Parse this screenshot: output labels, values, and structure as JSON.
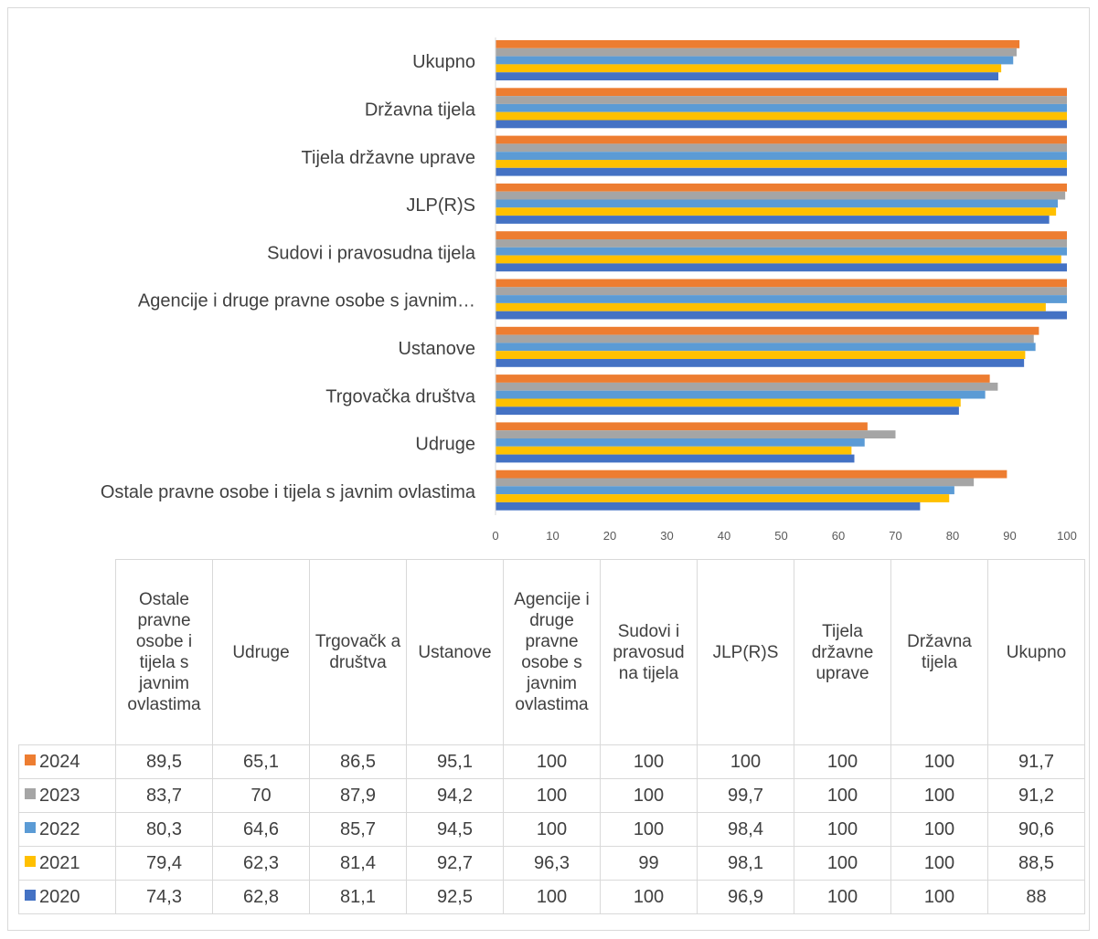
{
  "chart_data": {
    "type": "bar",
    "orientation": "horizontal",
    "categories": [
      "Ostale pravne osobe i tijela s javnim ovlastima",
      "Udruge",
      "Trgovačka društva",
      "Ustanove",
      "Agencije i druge pravne osobe s javnim ovlastima",
      "Sudovi i pravosudna tijela",
      "JLP(R)S",
      "Tijela državne uprave",
      "Državna tijela",
      "Ukupno"
    ],
    "axis_labels": [
      "Ostale pravne osobe i tijela s javnim ovlastima",
      "Udruge",
      "Trgovačka društva",
      "Ustanove",
      "Agencije i druge pravne osobe s javnim…",
      "Sudovi i pravosudna tijela",
      "JLP(R)S",
      "Tijela državne uprave",
      "Državna tijela",
      "Ukupno"
    ],
    "table_headers": [
      "Ostale pravne osobe i tijela s javnim ovlastima",
      "Udruge",
      "Trgovačk a društva",
      "Ustanove",
      "Agencije i druge pravne osobe s javnim ovlastima",
      "Sudovi i pravosud na tijela",
      "JLP(R)S",
      "Tijela državne uprave",
      "Državna tijela",
      "Ukupno"
    ],
    "series": [
      {
        "name": "2024",
        "color": "#ed7d31",
        "values": [
          89.5,
          65.1,
          86.5,
          95.1,
          100,
          100,
          100,
          100,
          100,
          91.7
        ],
        "labels": [
          "89,5",
          "65,1",
          "86,5",
          "95,1",
          "100",
          "100",
          "100",
          "100",
          "100",
          "91,7"
        ]
      },
      {
        "name": "2023",
        "color": "#a5a5a5",
        "values": [
          83.7,
          70,
          87.9,
          94.2,
          100,
          100,
          99.7,
          100,
          100,
          91.2
        ],
        "labels": [
          "83,7",
          "70",
          "87,9",
          "94,2",
          "100",
          "100",
          "99,7",
          "100",
          "100",
          "91,2"
        ]
      },
      {
        "name": "2022",
        "color": "#5b9bd5",
        "values": [
          80.3,
          64.6,
          85.7,
          94.5,
          100,
          100,
          98.4,
          100,
          100,
          90.6
        ],
        "labels": [
          "80,3",
          "64,6",
          "85,7",
          "94,5",
          "100",
          "100",
          "98,4",
          "100",
          "100",
          "90,6"
        ]
      },
      {
        "name": "2021",
        "color": "#ffc000",
        "values": [
          79.4,
          62.3,
          81.4,
          92.7,
          96.3,
          99,
          98.1,
          100,
          100,
          88.5
        ],
        "labels": [
          "79,4",
          "62,3",
          "81,4",
          "92,7",
          "96,3",
          "99",
          "98,1",
          "100",
          "100",
          "88,5"
        ]
      },
      {
        "name": "2020",
        "color": "#4472c4",
        "values": [
          74.3,
          62.8,
          81.1,
          92.5,
          100,
          100,
          96.9,
          100,
          100,
          88
        ],
        "labels": [
          "74,3",
          "62,8",
          "81,1",
          "92,5",
          "100",
          "100",
          "96,9",
          "100",
          "100",
          "88"
        ]
      }
    ],
    "xlim": [
      0,
      100
    ],
    "xticks": [
      0,
      10,
      20,
      30,
      40,
      50,
      60,
      70,
      80,
      90,
      100
    ],
    "grid": false,
    "legend": "data-table",
    "title": "",
    "xlabel": "",
    "ylabel": ""
  }
}
